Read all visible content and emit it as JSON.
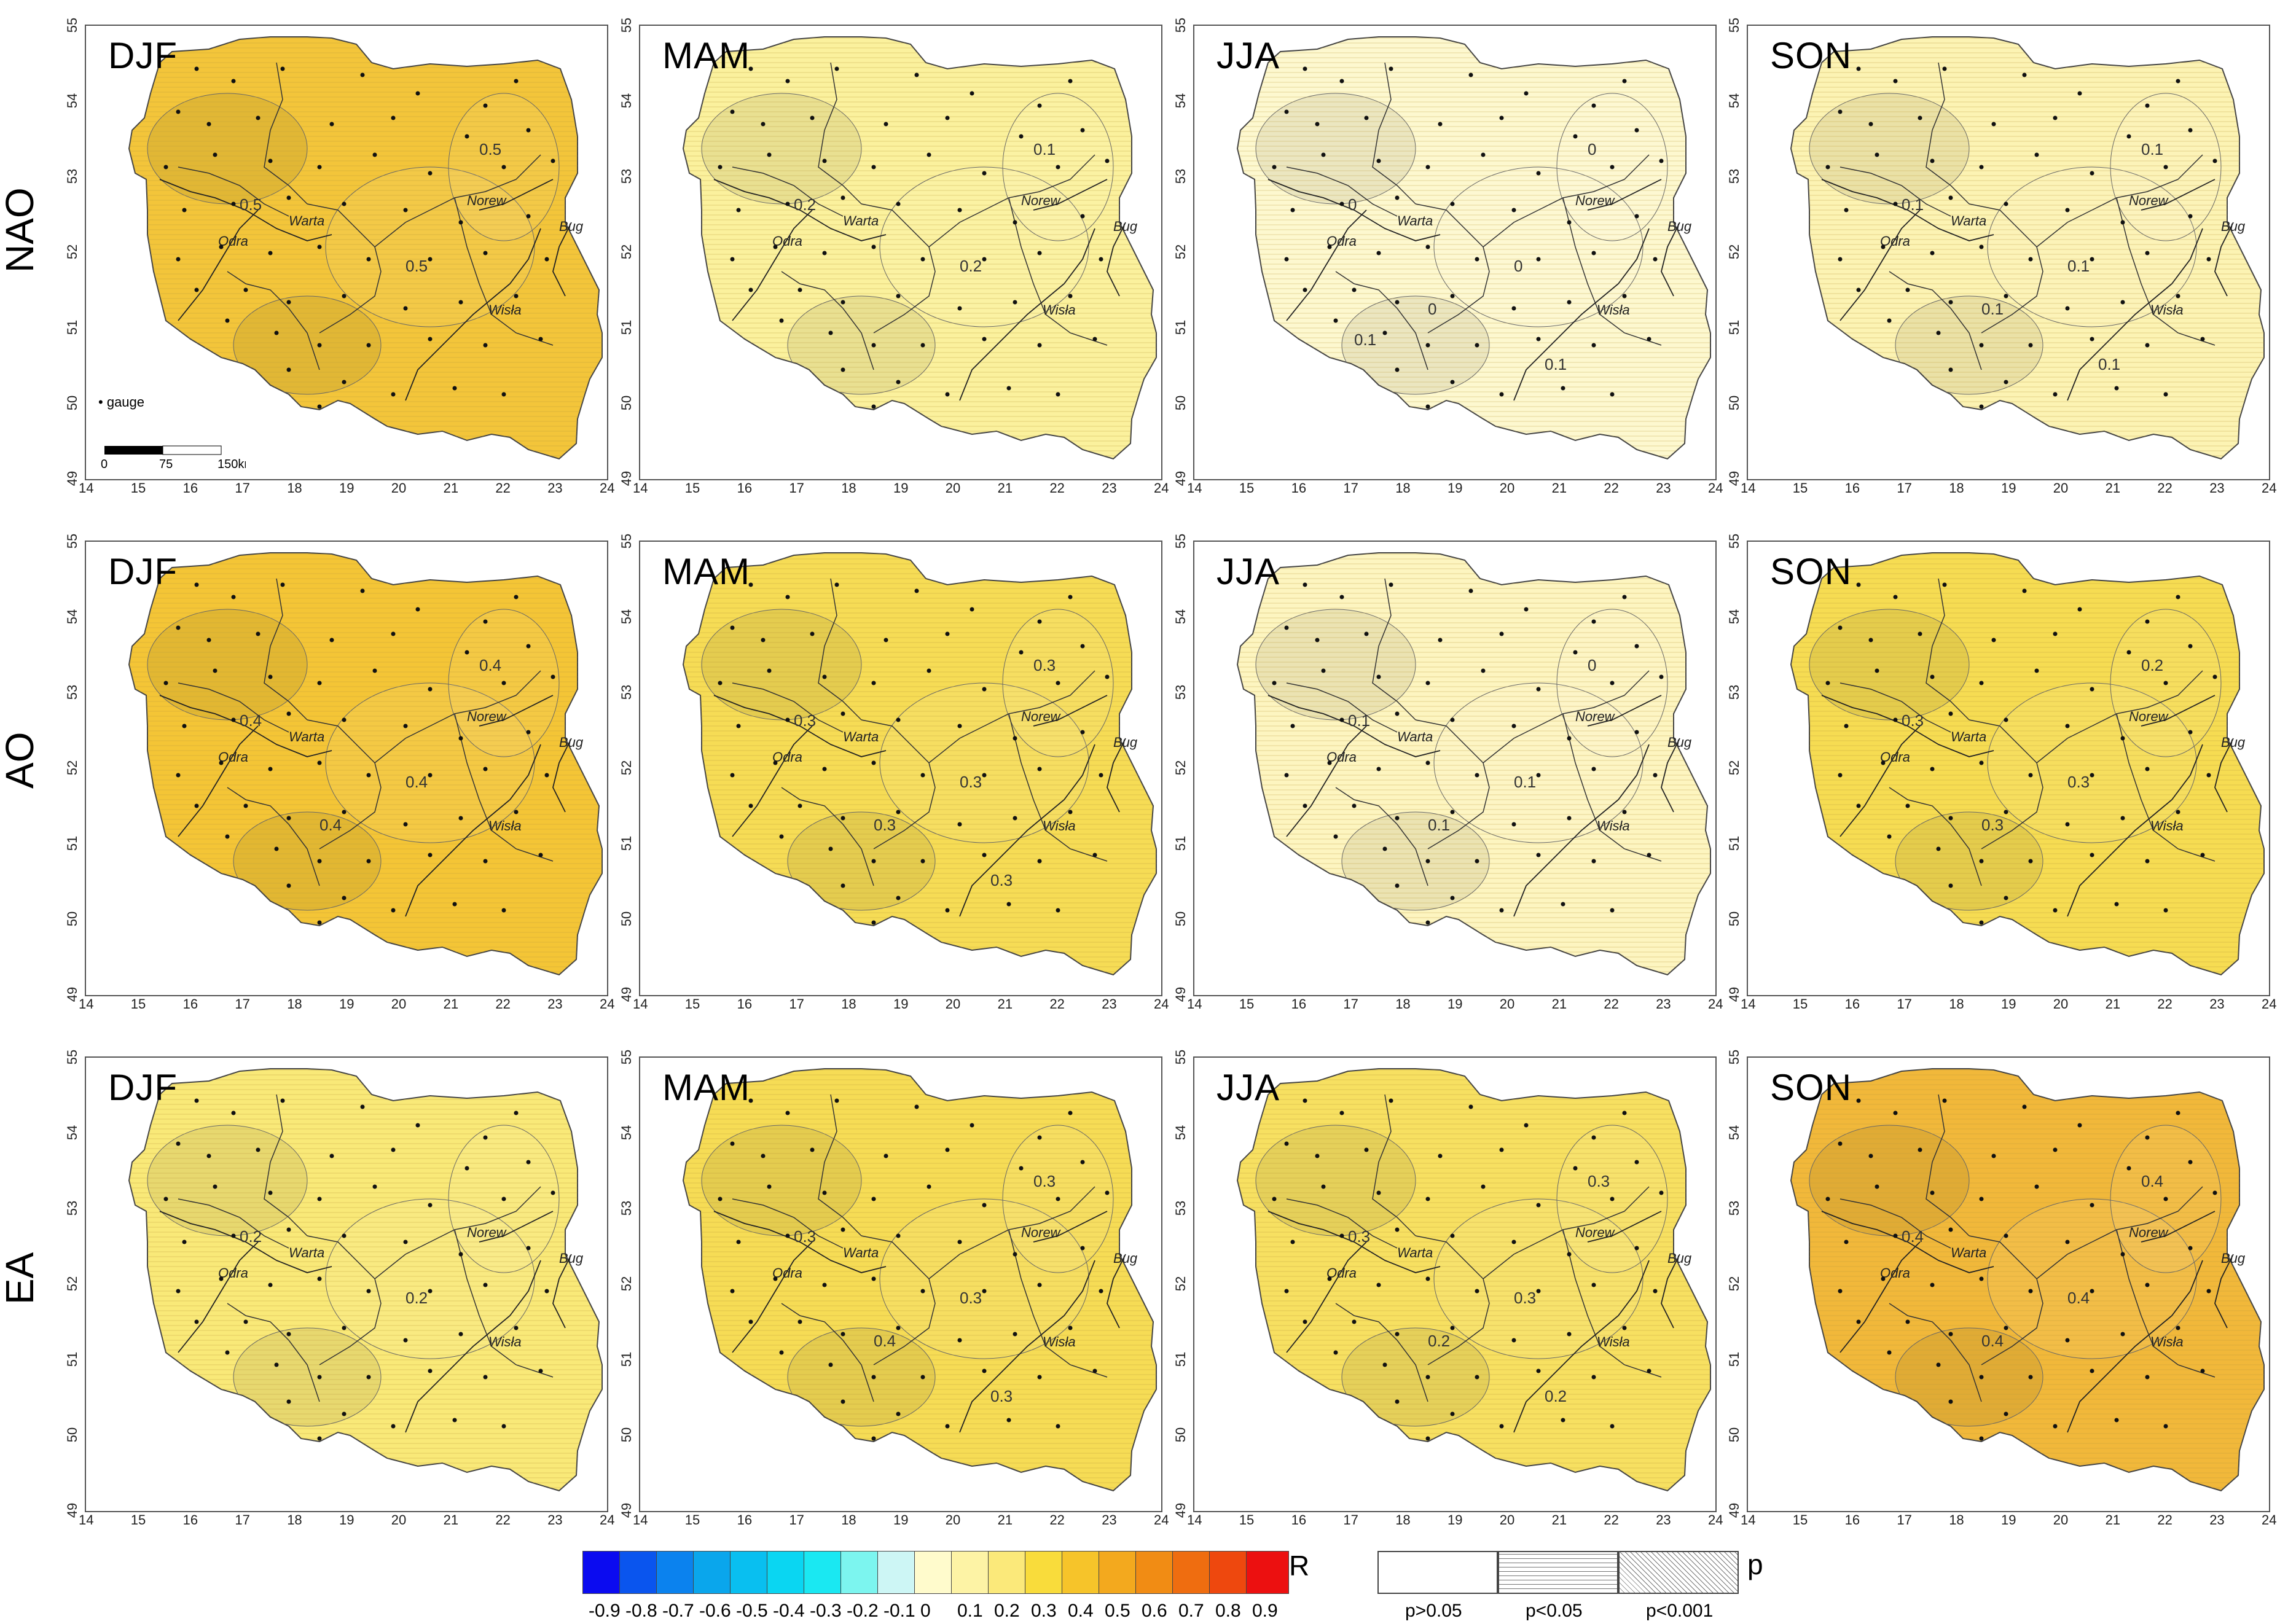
{
  "rows": [
    {
      "label": "NAO",
      "panels": [
        {
          "season": "DJF",
          "color": "#f3c53a",
          "contours": [
            "0.5",
            "0.5",
            "0.5"
          ]
        },
        {
          "season": "MAM",
          "color": "#fbf19d",
          "contours": [
            "0.2",
            "0.2",
            "0.1"
          ]
        },
        {
          "season": "JJA",
          "color": "#fdf8cf",
          "contours": [
            "0",
            "0",
            "0",
            "0",
            "0.1",
            "0.1"
          ]
        },
        {
          "season": "SON",
          "color": "#fcf3b3",
          "contours": [
            "0.1",
            "0.1",
            "0.1",
            "0.1",
            "0.1"
          ]
        }
      ]
    },
    {
      "label": "AO",
      "panels": [
        {
          "season": "DJF",
          "color": "#f4c536",
          "contours": [
            "0.4",
            "0.4",
            "0.4",
            "0.4"
          ]
        },
        {
          "season": "MAM",
          "color": "#f6dc55",
          "contours": [
            "0.3",
            "0.3",
            "0.3",
            "0.3",
            "0.3"
          ]
        },
        {
          "season": "JJA",
          "color": "#fdf5c0",
          "contours": [
            "0.1",
            "0.1",
            "0",
            "0.1"
          ]
        },
        {
          "season": "SON",
          "color": "#f6dc52",
          "contours": [
            "0.3",
            "0.3",
            "0.2",
            "0.3"
          ]
        }
      ]
    },
    {
      "label": "EA",
      "panels": [
        {
          "season": "DJF",
          "color": "#f9e978",
          "contours": [
            "0.2",
            "0.2"
          ]
        },
        {
          "season": "MAM",
          "color": "#f6dc55",
          "contours": [
            "0.3",
            "0.3",
            "0.3",
            "0.4",
            "0.3"
          ]
        },
        {
          "season": "JJA",
          "color": "#f7e061",
          "contours": [
            "0.3",
            "0.3",
            "0.3",
            "0.2",
            "0.2"
          ]
        },
        {
          "season": "SON",
          "color": "#f1b83a",
          "contours": [
            "0.4",
            "0.4",
            "0.4",
            "0.4"
          ]
        }
      ]
    }
  ],
  "rivers": [
    "Warta",
    "Norew",
    "Bug",
    "Odra",
    "Wisła"
  ],
  "x_ticks": [
    "14",
    "15",
    "16",
    "17",
    "18",
    "19",
    "20",
    "21",
    "22",
    "23",
    "24"
  ],
  "y_ticks": [
    "49",
    "50",
    "51",
    "52",
    "53",
    "54",
    "55"
  ],
  "gauge_legend": "gauge",
  "scale_bar": {
    "labels": [
      "0",
      "75",
      "150km"
    ]
  },
  "colorbar": {
    "title": "R",
    "labels": [
      "-0.9",
      "-0.8",
      "-0.7",
      "-0.6",
      "-0.5",
      "-0.4",
      "-0.3",
      "-0.2",
      "-0.1",
      "0",
      "0.1",
      "0.2",
      "0.3",
      "0.4",
      "0.5",
      "0.6",
      "0.7",
      "0.8",
      "0.9"
    ],
    "colors": [
      "#0b0bf0",
      "#0a55ee",
      "#0b82ee",
      "#0aa6ec",
      "#09bff0",
      "#0ad6f2",
      "#1ae8f2",
      "#7cf5ef",
      "#cdf6f5",
      "#fffbcc",
      "#fdf3a5",
      "#fbe97a",
      "#f9dc3b",
      "#f6c42a",
      "#f3a91e",
      "#f18c14",
      "#ef6d10",
      "#ee480e",
      "#ec1010"
    ]
  },
  "p_legend": {
    "title": "p",
    "labels": [
      "p>0.05",
      "p<0.05",
      "p<0.001"
    ]
  }
}
